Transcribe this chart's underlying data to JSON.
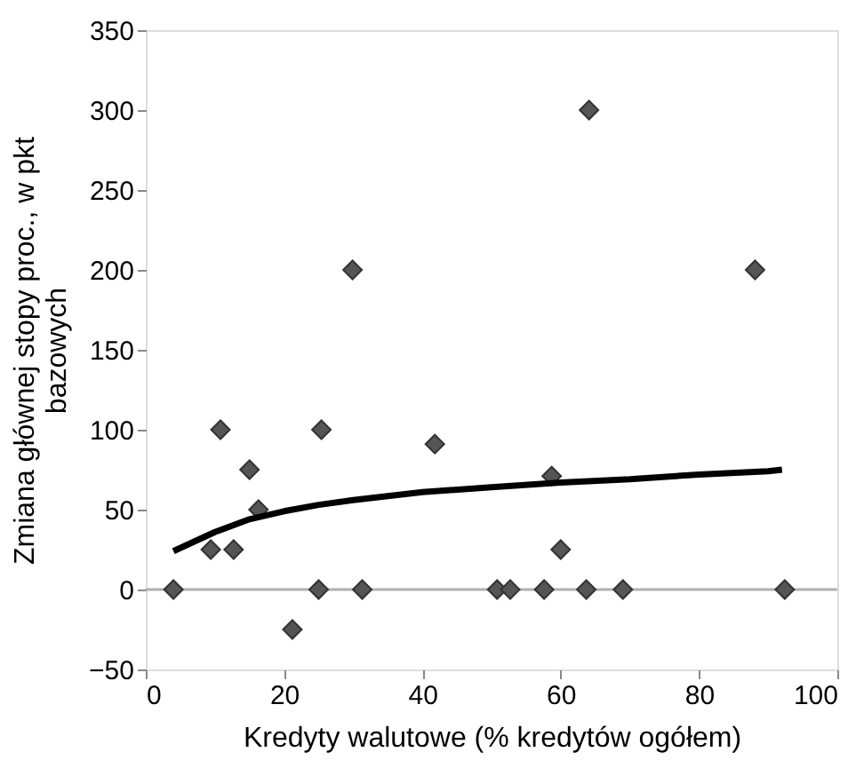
{
  "chart_data": {
    "type": "scatter",
    "xlabel": "Kredyty walutowe (% kredytów ogółem)",
    "ylabel": "Zmiana głównej stopy proc., w pkt bazowych",
    "xlim": [
      0,
      100
    ],
    "xticks": [
      0,
      20,
      40,
      60,
      80,
      100
    ],
    "ylim": [
      -50,
      350
    ],
    "yticks": [
      -50,
      0,
      50,
      100,
      150,
      200,
      250,
      300,
      350
    ],
    "grid": false,
    "marker": "diamond",
    "ref_lines": [
      {
        "axis": "y",
        "value": 0,
        "color": "#b0b0b0"
      }
    ],
    "series": [
      {
        "color": "#555555",
        "x": [
          4.0,
          9.4,
          10.8,
          12.7,
          15.0,
          16.3,
          21.2,
          25.0,
          25.4,
          29.9,
          31.3,
          41.8,
          50.8,
          52.7,
          57.6,
          58.7,
          60.0,
          63.7,
          64.1,
          69.0,
          88.1,
          92.4
        ],
        "values": [
          0,
          25,
          100,
          25,
          75,
          50,
          -25,
          0,
          100,
          200,
          0,
          91,
          0,
          0,
          0,
          71,
          25,
          0,
          300,
          0,
          200,
          0
        ]
      },
      {
        "type": "line",
        "color": "#000000",
        "line_style": "solid",
        "marker": "none",
        "x": [
          4,
          10,
          15,
          20,
          25,
          30,
          40,
          50,
          60,
          70,
          80,
          90,
          92
        ],
        "values": [
          24,
          36,
          44,
          49,
          53,
          56,
          61,
          64,
          67,
          69,
          72,
          74,
          75
        ]
      }
    ]
  }
}
